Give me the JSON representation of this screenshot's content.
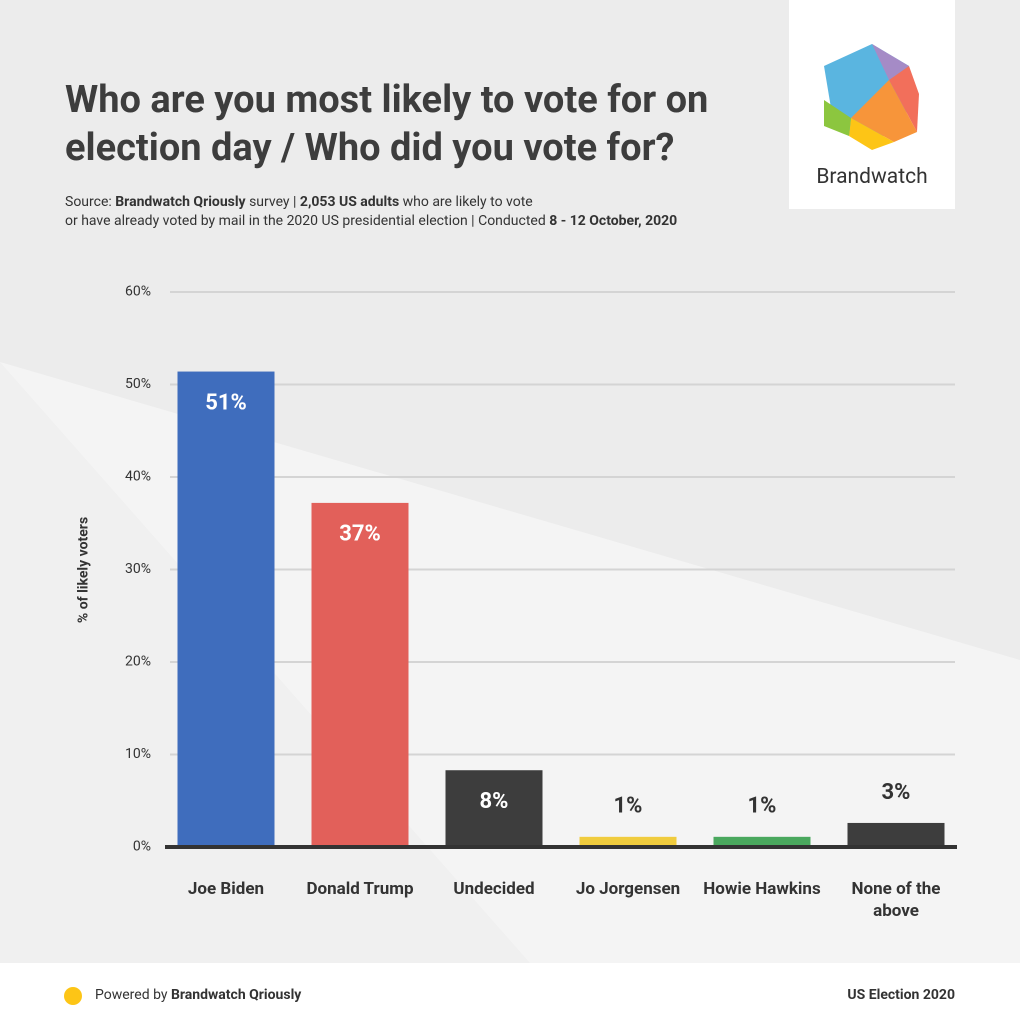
{
  "chart_data": {
    "type": "bar",
    "title": "Who are you most likely to vote for on election day / Who did you vote for?",
    "subtitle": [
      [
        {
          "text": "Source: ",
          "bold": false
        },
        {
          "text": "Brandwatch Qriously",
          "bold": true
        },
        {
          "text": " survey | ",
          "bold": false
        },
        {
          "text": "2,053 US adults",
          "bold": true
        },
        {
          "text": " who are likely to vote",
          "bold": false
        }
      ],
      [
        {
          "text": "or have already voted by mail in the 2020 US presidential election | Conducted ",
          "bold": false
        },
        {
          "text": "8 - 12 October, 2020",
          "bold": true
        }
      ]
    ],
    "logo": "Brandwatch",
    "y_label": "% of likely voters",
    "categories": [
      "Joe Biden",
      "Donald Trump",
      "Undecided",
      "Jo Jorgensen",
      "Howie Hawkins",
      "None of the above"
    ],
    "values": [
      51.4,
      37.2,
      8.3,
      1.1,
      1.1,
      2.6
    ],
    "value_labels": [
      "51%",
      "37%",
      "8%",
      "1%",
      "1%",
      "3%"
    ],
    "colors": [
      "#3f6dbd",
      "#e2605a",
      "#3d3d3d",
      "#f0cc3e",
      "#4aa85e",
      "#3d3d3d"
    ],
    "ylim": [
      0,
      60
    ],
    "yticks": [
      {
        "value": 0,
        "label": "0%"
      },
      {
        "value": 10,
        "label": "10%"
      },
      {
        "value": 20,
        "label": "20%"
      },
      {
        "value": 30,
        "label": "30%"
      },
      {
        "value": 40,
        "label": "40%"
      },
      {
        "value": 50,
        "label": "50%"
      },
      {
        "value": 60,
        "label": "60%"
      }
    ],
    "grid": true,
    "footer": {
      "prefix": "Powered by ",
      "brand": "Brandwatch Qriously",
      "right": "US Election 2020"
    }
  }
}
